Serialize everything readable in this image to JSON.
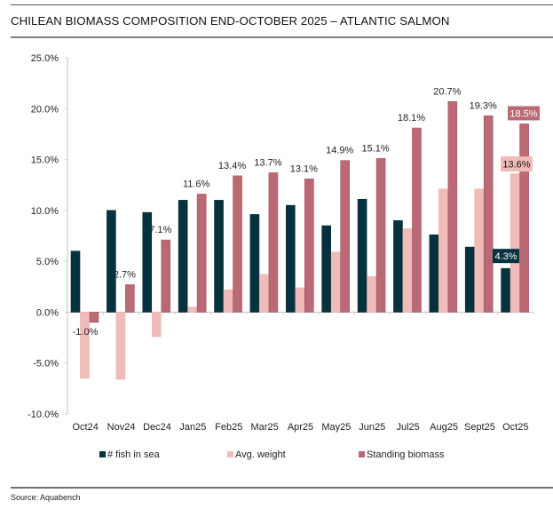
{
  "title": "CHILEAN BIOMASS COMPOSITION END-OCTOBER 2025 – ATLANTIC SALMON",
  "source": "Source: Aquabench",
  "colors": {
    "fish": "#04333f",
    "weight": "#f0bcb9",
    "biomass": "#b96a74",
    "axis": "#c8ccd0"
  },
  "chart_data": {
    "type": "bar",
    "title": "CHILEAN BIOMASS COMPOSITION END-OCTOBER 2025 – ATLANTIC SALMON",
    "xlabel": "",
    "ylabel": "",
    "ylim": [
      -10,
      25
    ],
    "yticks": [
      -10,
      -5,
      0,
      5,
      10,
      15,
      20,
      25
    ],
    "ytick_labels": [
      "-10.0%",
      "-5.0%",
      "0.0%",
      "5.0%",
      "10.0%",
      "15.0%",
      "20.0%",
      "25.0%"
    ],
    "grid": false,
    "legend_position": "bottom",
    "categories": [
      "Oct24",
      "Nov24",
      "Dec24",
      "Jan25",
      "Feb25",
      "Mar25",
      "Apr25",
      "May25",
      "Jun25",
      "Jul25",
      "Aug25",
      "Sept25",
      "Oct25"
    ],
    "series": [
      {
        "name": "# fish in sea",
        "key": "fish",
        "values": [
          6.0,
          10.0,
          9.8,
          11.0,
          11.0,
          9.6,
          10.5,
          8.5,
          11.1,
          9.0,
          7.6,
          6.4,
          4.3
        ]
      },
      {
        "name": "Avg. weight",
        "key": "weight",
        "values": [
          -6.5,
          -6.6,
          -2.4,
          0.5,
          2.2,
          3.7,
          2.4,
          5.9,
          3.5,
          8.2,
          12.1,
          12.1,
          13.6
        ]
      },
      {
        "name": "Standing biomass",
        "key": "biomass",
        "values": [
          -1.0,
          2.7,
          7.1,
          11.6,
          13.4,
          13.7,
          13.1,
          14.9,
          15.1,
          18.1,
          20.7,
          19.3,
          18.5
        ]
      }
    ],
    "data_labels": {
      "biomass": [
        "-1.0%",
        "2.7%",
        "7.1%",
        "11.6%",
        "13.4%",
        "13.7%",
        "13.1%",
        "14.9%",
        "15.1%",
        "18.1%",
        "20.7%",
        "19.3%",
        "18.5%"
      ],
      "highlighted": [
        {
          "series": "fish",
          "category": "Oct25",
          "text": "4.3%"
        },
        {
          "series": "weight",
          "category": "Oct25",
          "text": "13.6%"
        },
        {
          "series": "biomass",
          "category": "Oct25",
          "text": "18.5%"
        }
      ]
    }
  }
}
